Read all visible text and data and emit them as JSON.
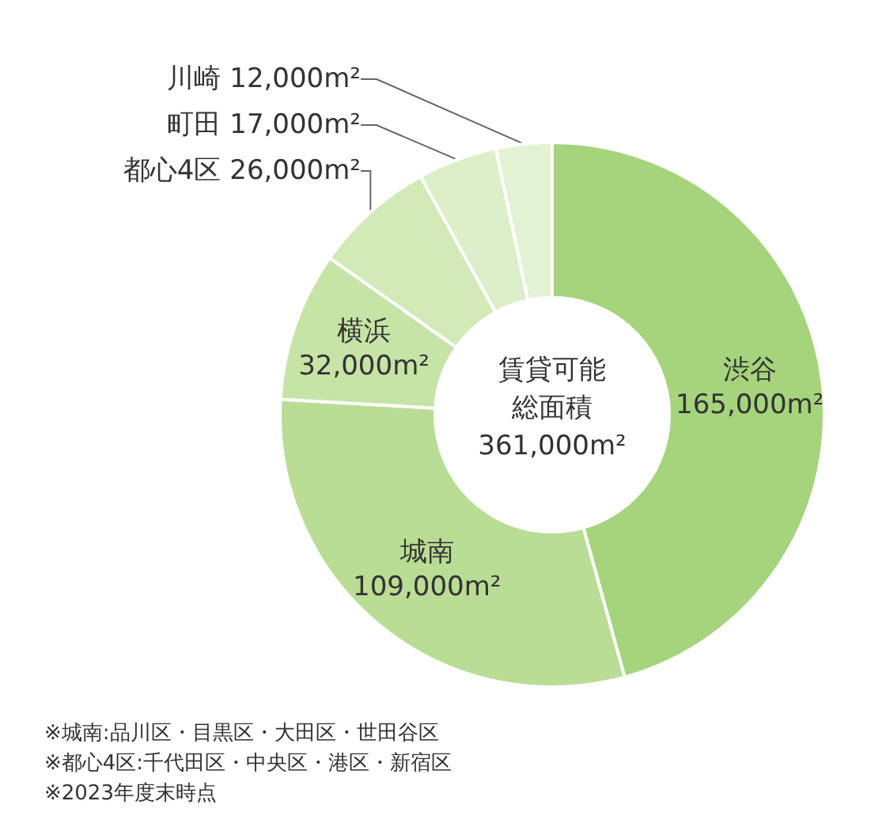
{
  "chart_data": {
    "type": "donut",
    "categories": [
      "渋谷",
      "城南",
      "横浜",
      "都心4区",
      "町田",
      "川崎"
    ],
    "values": [
      165000,
      109000,
      32000,
      26000,
      17000,
      12000
    ],
    "value_labels": [
      "165,000m²",
      "109,000m²",
      "32,000m²",
      "26,000m²",
      "17,000m²",
      "12,000m²"
    ],
    "colors": [
      "#a6d47c",
      "#b9dd94",
      "#c6e4a6",
      "#d2eab8",
      "#dcefc8",
      "#e3f2d3"
    ],
    "annotations": [
      "賃貸可能総面積",
      "361,000m²",
      "※城南:品川区・目黒区・大田区・世田谷区",
      "※都心4区:千代田区・中央区・港区・新宿区",
      "※2023年度末時点"
    ],
    "legend": false
  }
}
